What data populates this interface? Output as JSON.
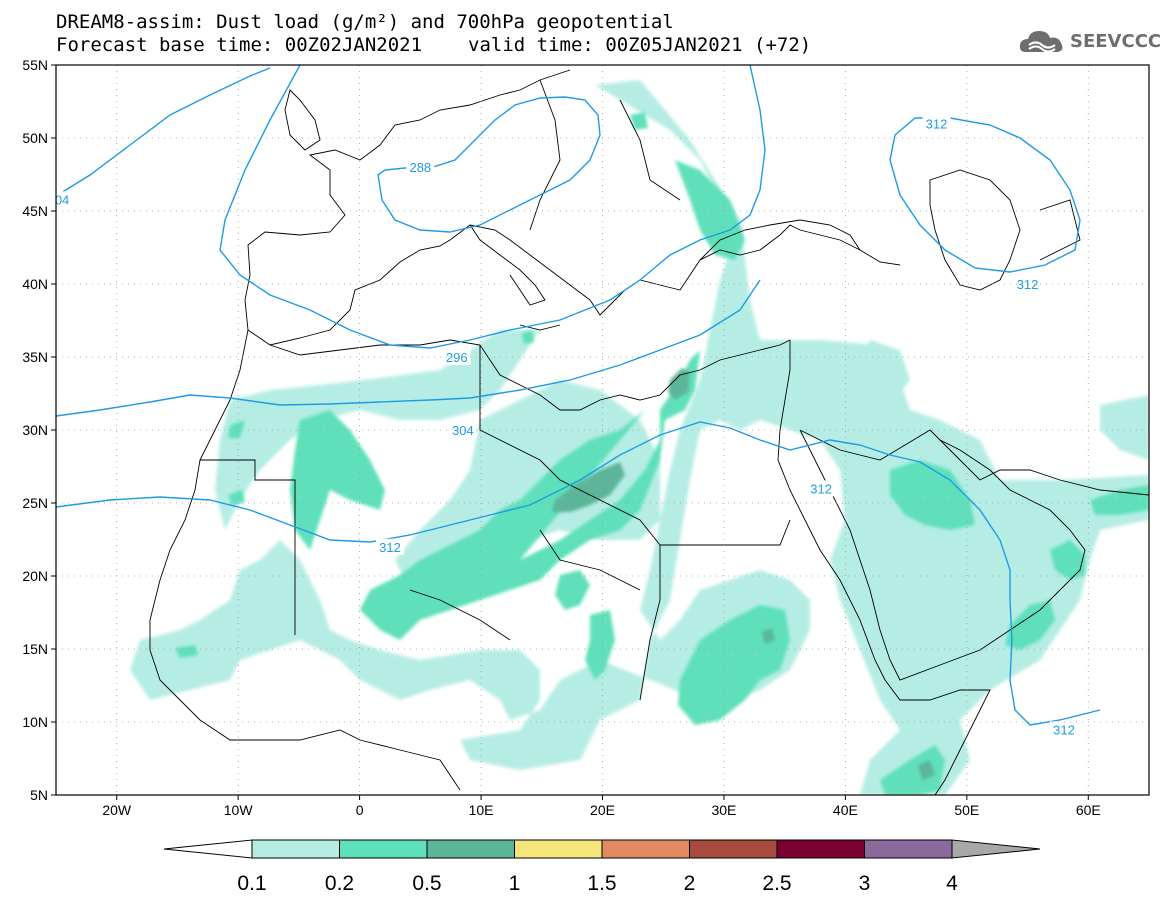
{
  "header": {
    "title_line1": "DREAM8-assim: Dust load (g/m²) and 700hPa geopotential",
    "base_time": "Forecast base time: 00Z02JAN2021",
    "valid_time": "valid time: 00Z05JAN2021 (+72)"
  },
  "logo": {
    "text": "SEEVCCC",
    "icon": "cloud-icon",
    "color": "#6e6e6e"
  },
  "map": {
    "lat_labels": [
      "55N",
      "50N",
      "45N",
      "40N",
      "35N",
      "30N",
      "25N",
      "20N",
      "15N",
      "10N",
      "5N"
    ],
    "lon_labels": [
      "20W",
      "10W",
      "0",
      "10E",
      "20E",
      "30E",
      "40E",
      "50E",
      "60E"
    ],
    "contour_labels": [
      {
        "text": "288",
        "lon": 5,
        "lat": 48
      },
      {
        "text": "296",
        "lon": 8,
        "lat": 35
      },
      {
        "text": "304",
        "lon": 8.5,
        "lat": 30
      },
      {
        "text": "312",
        "lon": 2.5,
        "lat": 22
      },
      {
        "text": "312",
        "lon": 38,
        "lat": 26
      },
      {
        "text": "312",
        "lon": 55,
        "lat": 40
      },
      {
        "text": "312",
        "lon": 47.5,
        "lat": 51
      },
      {
        "text": "312",
        "lon": 58,
        "lat": 9.5
      },
      {
        "text": "04",
        "lon": -24.5,
        "lat": 45.8
      }
    ],
    "contour_color": "#1e9be6"
  },
  "legend": {
    "labels": [
      "0.1",
      "0.2",
      "0.5",
      "1",
      "1.5",
      "2",
      "2.5",
      "3",
      "4"
    ],
    "colors": [
      "#b5ede4",
      "#5ee0ba",
      "#5cb598",
      "#f5e57a",
      "#e38a63",
      "#a84a3e",
      "#7a0030",
      "#8a6a9a",
      "#a8a8a8"
    ],
    "left_arrow_color": "#ffffff"
  }
}
